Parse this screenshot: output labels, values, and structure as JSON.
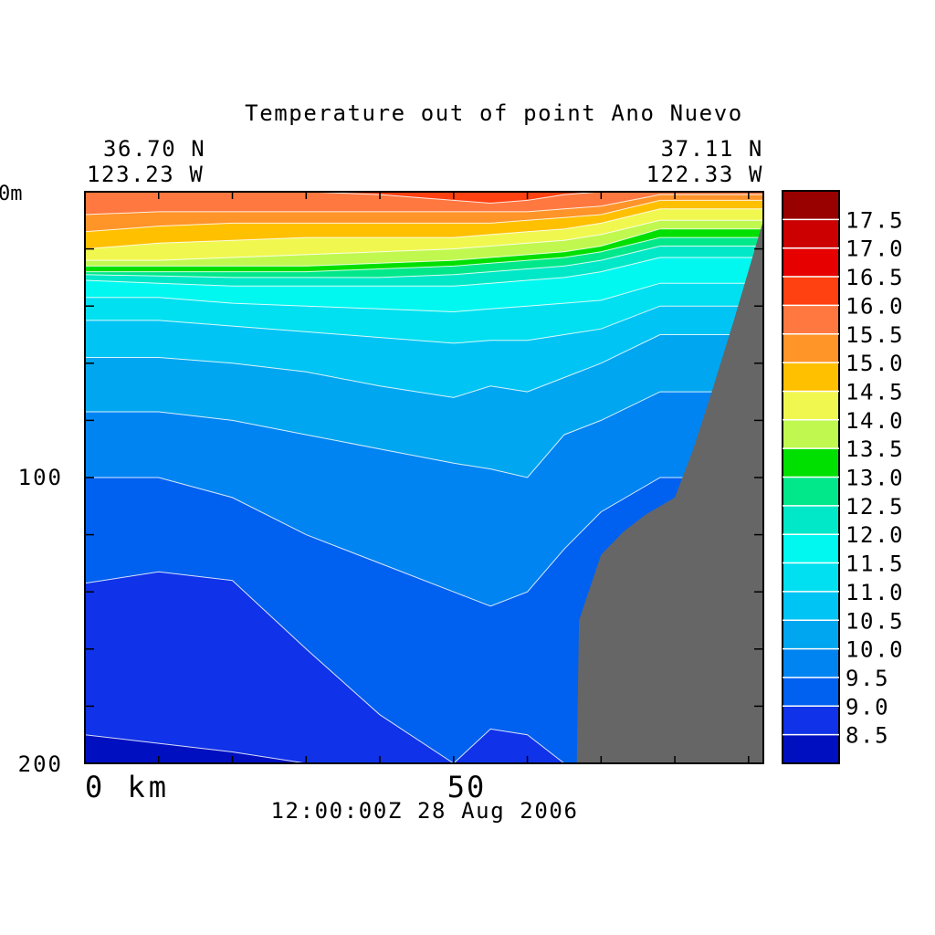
{
  "title": "Temperature out of point Ano Nuevo",
  "location": {
    "start_lat": "36.70 N",
    "start_lon": "123.23 W",
    "end_lat": "37.11 N",
    "end_lon": "122.33 W"
  },
  "timestamp": "12:00:00Z  28 Aug 2006",
  "chart_data": {
    "type": "heatmap",
    "title": "Temperature out of point Ano Nuevo",
    "x": {
      "range": [
        0,
        92
      ],
      "ticks": [
        {
          "value": 0,
          "label": "0 km"
        },
        {
          "value": 50,
          "label": "50"
        }
      ]
    },
    "y": {
      "range": [
        0,
        200
      ],
      "inverted": true,
      "ticks": [
        {
          "value": 0,
          "label": "0m"
        },
        {
          "value": 100,
          "label": "100"
        },
        {
          "value": 200,
          "label": "200"
        }
      ]
    },
    "levels": [
      8.0,
      8.5,
      9.0,
      9.5,
      10.0,
      10.5,
      11.0,
      11.5,
      12.0,
      12.5,
      13.0,
      13.5,
      14.0,
      14.5,
      15.0,
      15.5,
      16.0,
      16.5,
      17.0,
      17.5,
      18.0
    ],
    "colorbar": {
      "labels": [
        "17.5",
        "17.0",
        "16.5",
        "16.0",
        "15.5",
        "15.0",
        "14.5",
        "14.0",
        "13.5",
        "13.0",
        "12.5",
        "12.0",
        "11.5",
        "11.0",
        "10.5",
        "10.0",
        "9.5",
        "9.0",
        "8.5"
      ],
      "colors": [
        "#990000",
        "#cc0000",
        "#e60000",
        "#ff4010",
        "#ff7840",
        "#ff9428",
        "#ffc000",
        "#f0f850",
        "#c0f850",
        "#00e000",
        "#00e88a",
        "#00e8c8",
        "#00f8f0",
        "#00e0f0",
        "#00c4f4",
        "#00a6ef",
        "#0084f2",
        "#0060f0",
        "#1032e8",
        "#0010c0"
      ]
    },
    "isotherm_depths": {
      "x_km": [
        0,
        10,
        20,
        30,
        40,
        50,
        55,
        60,
        65,
        70,
        78
      ],
      "levels": [
        {
          "t": 8.5,
          "depth": [
            190,
            193,
            196,
            200,
            200,
            200,
            200,
            200,
            200,
            200,
            200
          ]
        },
        {
          "t": 9.0,
          "depth": [
            137,
            133,
            136,
            160,
            183,
            200,
            188,
            190,
            200,
            200,
            200
          ]
        },
        {
          "t": 9.5,
          "depth": [
            100,
            100,
            107,
            120,
            130,
            140,
            145,
            140,
            125,
            112,
            100
          ]
        },
        {
          "t": 10.0,
          "depth": [
            77,
            77,
            80,
            85,
            90,
            95,
            97,
            100,
            85,
            80,
            70
          ]
        },
        {
          "t": 10.5,
          "depth": [
            58,
            58,
            60,
            63,
            68,
            72,
            68,
            70,
            65,
            60,
            50
          ]
        },
        {
          "t": 11.0,
          "depth": [
            45,
            45,
            47,
            49,
            51,
            53,
            52,
            52,
            50,
            48,
            40
          ]
        },
        {
          "t": 11.5,
          "depth": [
            37,
            37,
            39,
            40,
            41,
            42,
            41,
            40,
            39,
            38,
            32
          ]
        },
        {
          "t": 12.0,
          "depth": [
            31,
            32,
            33,
            33,
            33,
            33,
            32,
            31,
            30,
            28,
            23
          ]
        },
        {
          "t": 12.5,
          "depth": [
            29,
            29.5,
            30,
            30,
            30,
            29,
            28,
            27,
            26,
            24,
            19
          ]
        },
        {
          "t": 13.0,
          "depth": [
            28,
            28,
            28,
            28,
            27,
            26,
            25,
            24,
            23,
            21,
            16
          ]
        },
        {
          "t": 13.5,
          "depth": [
            26,
            26,
            26,
            26,
            25,
            24,
            23,
            22,
            21,
            19,
            13
          ]
        },
        {
          "t": 14.0,
          "depth": [
            24,
            24,
            23,
            22,
            21,
            20,
            19,
            18,
            17,
            15,
            10
          ]
        },
        {
          "t": 14.5,
          "depth": [
            20,
            18,
            17,
            16,
            16,
            16,
            15,
            14,
            13,
            11,
            6
          ]
        },
        {
          "t": 15.0,
          "depth": [
            14,
            12,
            11,
            11,
            11,
            11,
            11,
            10,
            9,
            8,
            3
          ]
        },
        {
          "t": 15.5,
          "depth": [
            8,
            7,
            7,
            7,
            7,
            7,
            7,
            7,
            6,
            5,
            1
          ]
        },
        {
          "t": 16.0,
          "depth": [
            0,
            0,
            0,
            0,
            1,
            3,
            4,
            3,
            1,
            0,
            0
          ]
        }
      ]
    },
    "bathymetry": {
      "x_km": [
        66.7,
        67,
        70,
        73,
        76,
        80,
        82.5,
        85,
        88,
        92
      ],
      "depth": [
        200,
        150,
        127,
        119,
        113,
        107,
        90,
        70,
        45,
        10
      ]
    }
  }
}
